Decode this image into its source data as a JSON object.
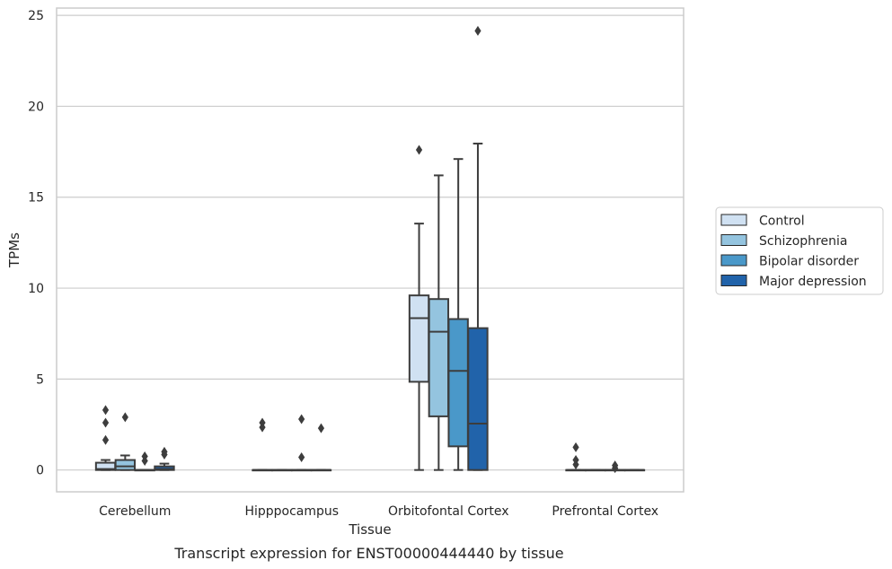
{
  "chart_data": {
    "type": "boxplot",
    "title": "",
    "caption": "Transcript expression for ENST00000444440 by tissue",
    "xlabel": "Tissue",
    "ylabel": "TPMs",
    "ylim": [
      -1.2,
      25.4
    ],
    "yticks": [
      0,
      5,
      10,
      15,
      20,
      25
    ],
    "grid": true,
    "legend_position": "right",
    "categories": [
      "Cerebellum",
      "Hipppocampus",
      "Orbitofontal Cortex",
      "Prefrontal Cortex"
    ],
    "series": [
      {
        "name": "Control",
        "color": "#d0e1f2",
        "boxes": [
          {
            "whislo": 0,
            "q1": 0,
            "med": 0.05,
            "q3": 0.4,
            "whishi": 0.55,
            "fliers": [
              1.65,
              2.6,
              3.3
            ]
          },
          {
            "whislo": 0,
            "q1": 0,
            "med": 0,
            "q3": 0,
            "whishi": 0,
            "fliers": [
              2.35,
              2.6
            ]
          },
          {
            "whislo": 0,
            "q1": 4.85,
            "med": 8.35,
            "q3": 9.6,
            "whishi": 13.55,
            "fliers": [
              17.6
            ]
          },
          {
            "whislo": 0,
            "q1": 0,
            "med": 0,
            "q3": 0,
            "whishi": 0,
            "fliers": [
              0.3,
              0.55,
              1.25
            ]
          }
        ]
      },
      {
        "name": "Schizophrenia",
        "color": "#94c4df",
        "boxes": [
          {
            "whislo": 0,
            "q1": 0,
            "med": 0.2,
            "q3": 0.55,
            "whishi": 0.8,
            "fliers": [
              2.9
            ]
          },
          {
            "whislo": 0,
            "q1": 0,
            "med": 0,
            "q3": 0,
            "whishi": 0,
            "fliers": []
          },
          {
            "whislo": 0,
            "q1": 2.95,
            "med": 7.6,
            "q3": 9.4,
            "whishi": 16.2,
            "fliers": []
          },
          {
            "whislo": 0,
            "q1": 0,
            "med": 0,
            "q3": 0,
            "whishi": 0,
            "fliers": []
          }
        ]
      },
      {
        "name": "Bipolar disorder",
        "color": "#4a98c9",
        "boxes": [
          {
            "whislo": 0,
            "q1": 0,
            "med": 0,
            "q3": 0,
            "whishi": 0,
            "fliers": [
              0.5,
              0.75
            ]
          },
          {
            "whislo": 0,
            "q1": 0,
            "med": 0,
            "q3": 0,
            "whishi": 0,
            "fliers": [
              0.7,
              2.8
            ]
          },
          {
            "whislo": 0,
            "q1": 1.3,
            "med": 5.45,
            "q3": 8.3,
            "whishi": 17.1,
            "fliers": []
          },
          {
            "whislo": 0,
            "q1": 0,
            "med": 0,
            "q3": 0,
            "whishi": 0,
            "fliers": [
              0.1,
              0.25
            ]
          }
        ]
      },
      {
        "name": "Major depression",
        "color": "#2163aa",
        "boxes": [
          {
            "whislo": 0,
            "q1": 0,
            "med": 0.05,
            "q3": 0.2,
            "whishi": 0.35,
            "fliers": [
              0.85,
              1.0
            ]
          },
          {
            "whislo": 0,
            "q1": 0,
            "med": 0,
            "q3": 0,
            "whishi": 0,
            "fliers": [
              2.3
            ]
          },
          {
            "whislo": 0,
            "q1": 0,
            "med": 2.55,
            "q3": 7.8,
            "whishi": 17.95,
            "fliers": [
              24.15
            ]
          },
          {
            "whislo": 0,
            "q1": 0,
            "med": 0,
            "q3": 0,
            "whishi": 0,
            "fliers": []
          }
        ]
      }
    ]
  }
}
